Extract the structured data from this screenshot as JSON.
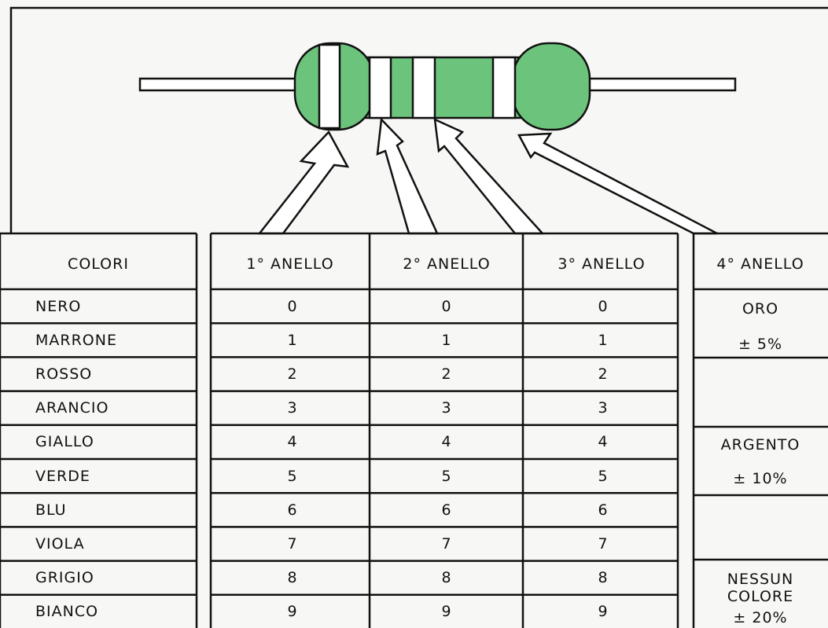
{
  "header": {
    "columns": [
      "COLORI",
      "1° ANELLO",
      "2° ANELLO",
      "3° ANELLO",
      "4° ANELLO"
    ]
  },
  "rows": [
    {
      "color": "NERO",
      "values": [
        0,
        0,
        0
      ]
    },
    {
      "color": "MARRONE",
      "values": [
        1,
        1,
        1
      ]
    },
    {
      "color": "ROSSO",
      "values": [
        2,
        2,
        2
      ]
    },
    {
      "color": "ARANCIO",
      "values": [
        3,
        3,
        3
      ]
    },
    {
      "color": "GIALLO",
      "values": [
        4,
        4,
        4
      ]
    },
    {
      "color": "VERDE",
      "values": [
        5,
        5,
        5
      ]
    },
    {
      "color": "BLU",
      "values": [
        6,
        6,
        6
      ]
    },
    {
      "color": "VIOLA",
      "values": [
        7,
        7,
        7
      ]
    },
    {
      "color": "GRIGIO",
      "values": [
        8,
        8,
        8
      ]
    },
    {
      "color": "BIANCO",
      "values": [
        9,
        9,
        9
      ]
    }
  ],
  "ring4": [
    {
      "name": "ORO",
      "tolerance": "± 5%"
    },
    {
      "name": "ARGENTO",
      "tolerance": "± 10%"
    },
    {
      "name": "NESSUN COLORE",
      "tolerance": "± 20%"
    }
  ]
}
